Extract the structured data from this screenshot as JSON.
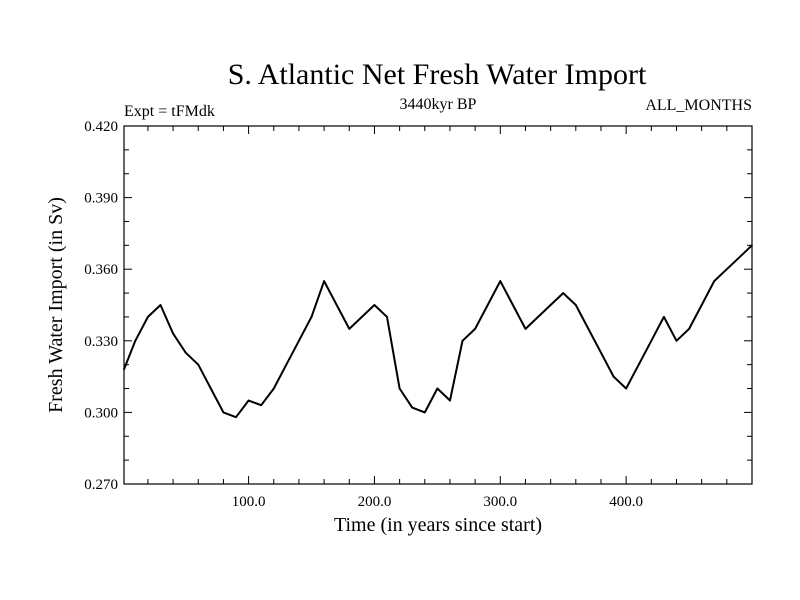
{
  "chart_data": {
    "type": "line",
    "title": "S. Atlantic Net Fresh Water Import",
    "subtitle_left": "Expt = tFMdk",
    "subtitle_center": "3440kyr BP",
    "subtitle_right": "ALL_MONTHS",
    "xlabel": "Time (in years since start)",
    "ylabel": "Fresh Water Import (in Sv)",
    "xlim": [
      1,
      500
    ],
    "ylim": [
      0.27,
      0.42
    ],
    "xticks": [
      100,
      200,
      300,
      400
    ],
    "xtick_labels": [
      "100.0",
      "200.0",
      "300.0",
      "400.0"
    ],
    "yticks": [
      0.27,
      0.3,
      0.33,
      0.36,
      0.39,
      0.42
    ],
    "ytick_labels": [
      "0.270",
      "0.300",
      "0.330",
      "0.360",
      "0.390",
      "0.420"
    ],
    "series": [
      {
        "name": "S. Atlantic Net Fresh Water Import",
        "x": [
          1,
          10,
          20,
          30,
          40,
          50,
          60,
          70,
          80,
          90,
          100,
          110,
          120,
          130,
          140,
          150,
          160,
          170,
          180,
          190,
          200,
          210,
          220,
          230,
          240,
          250,
          260,
          270,
          280,
          290,
          300,
          310,
          320,
          330,
          340,
          350,
          360,
          370,
          380,
          390,
          400,
          410,
          420,
          430,
          440,
          450,
          460,
          470,
          480,
          490,
          500
        ],
        "values": [
          0.318,
          0.33,
          0.34,
          0.345,
          0.333,
          0.325,
          0.32,
          0.31,
          0.3,
          0.298,
          0.305,
          0.303,
          0.31,
          0.32,
          0.33,
          0.34,
          0.355,
          0.345,
          0.335,
          0.34,
          0.345,
          0.34,
          0.31,
          0.302,
          0.3,
          0.31,
          0.305,
          0.33,
          0.335,
          0.345,
          0.355,
          0.345,
          0.335,
          0.34,
          0.345,
          0.35,
          0.345,
          0.335,
          0.325,
          0.315,
          0.31,
          0.32,
          0.33,
          0.34,
          0.33,
          0.335,
          0.345,
          0.355,
          0.36,
          0.365,
          0.37
        ],
        "color": "#000000"
      }
    ]
  }
}
